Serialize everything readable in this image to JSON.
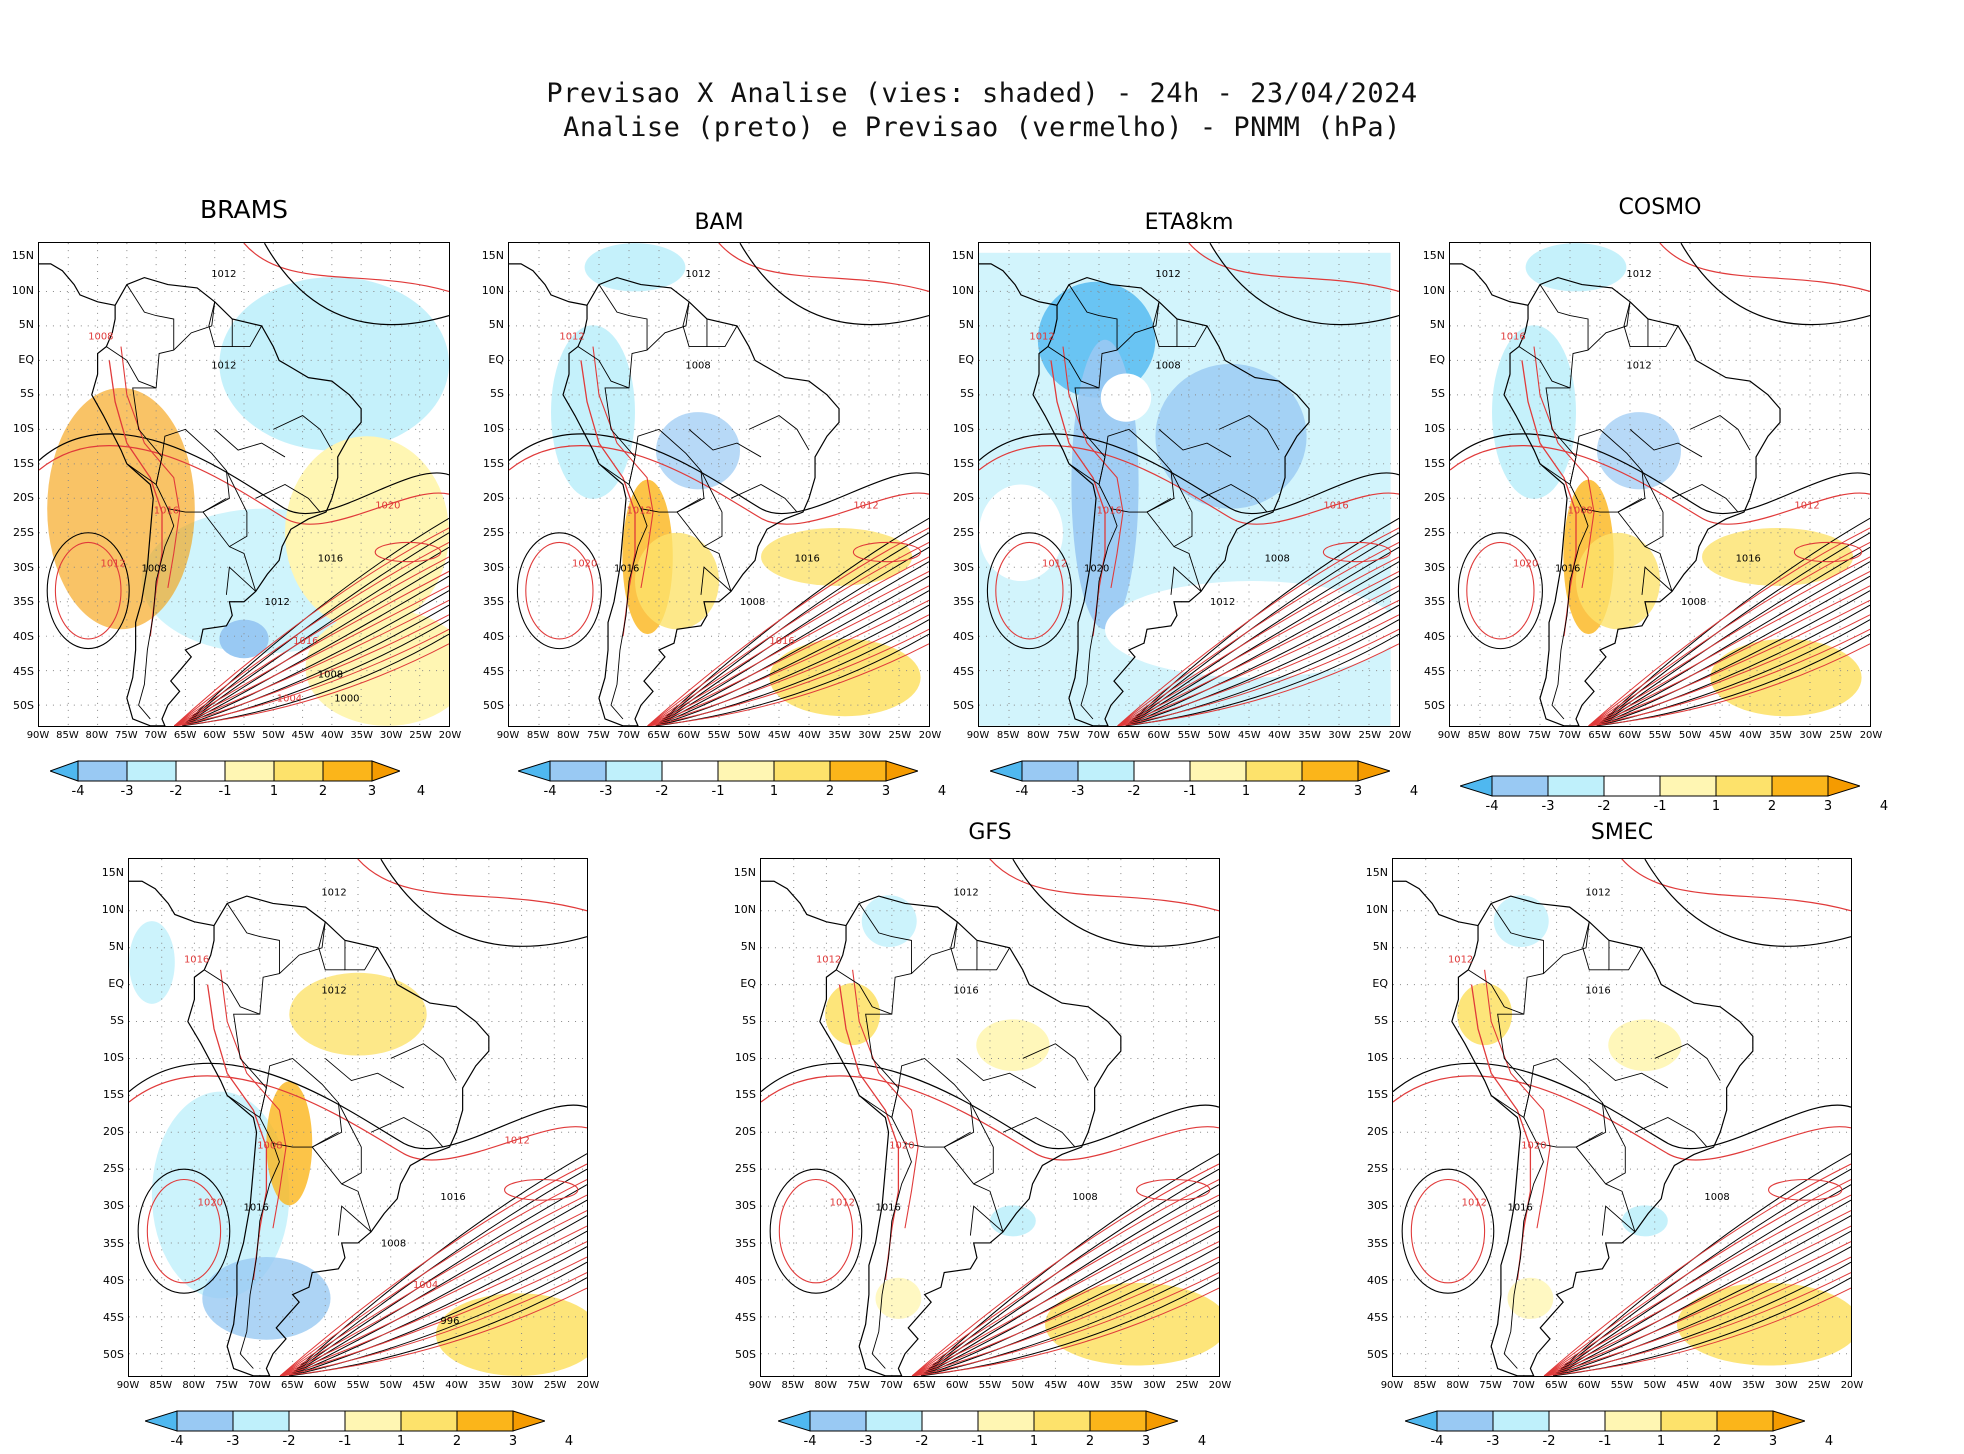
{
  "title": {
    "line1": "Previsao X Analise (vies: shaded) - 24h - 23/04/2024",
    "line2": "Analise (preto) e Previsao (vermelho) - PNMM (hPa)"
  },
  "lat_labels": [
    "15N",
    "10N",
    "5N",
    "EQ",
    "5S",
    "10S",
    "15S",
    "20S",
    "25S",
    "30S",
    "35S",
    "40S",
    "45S",
    "50S"
  ],
  "lon_labels": [
    "90W",
    "85W",
    "80W",
    "75W",
    "70W",
    "65W",
    "60W",
    "55W",
    "50W",
    "45W",
    "40W",
    "35W",
    "30W",
    "25W",
    "20W"
  ],
  "colorbar": {
    "labels": [
      "-4",
      "-3",
      "-2",
      "-1",
      "1",
      "2",
      "3",
      "4"
    ],
    "colors": [
      "#4fb8f0",
      "#99c9f3",
      "#bff0fb",
      "#ffffff",
      "#fff6b3",
      "#fde26b",
      "#fbb51a",
      "#f59b00"
    ]
  },
  "colors": {
    "analysis": "#000000",
    "forecast": "#e03a3a",
    "coast": "#000000"
  },
  "panels": [
    {
      "name": "BRAMS",
      "bias": "warm-strong",
      "contour_labels": [
        "1012",
        "1008",
        "1012",
        "1016",
        "1008",
        "1012",
        "1016",
        "1020",
        "1012",
        "1016",
        "1008",
        "1004",
        "1000"
      ]
    },
    {
      "name": "BAM",
      "bias": "mixed",
      "contour_labels": [
        "1012",
        "1012",
        "1008",
        "1012",
        "1016",
        "1020",
        "1016",
        "1012",
        "1008",
        "1016"
      ]
    },
    {
      "name": "ETA8km",
      "bias": "cool",
      "contour_labels": [
        "1012",
        "1012",
        "1008",
        "1016",
        "1020",
        "1012",
        "1008",
        "1016",
        "1012"
      ]
    },
    {
      "name": "COSMO",
      "bias": "mixed",
      "contour_labels": [
        "1012",
        "1016",
        "1012",
        "1008",
        "1016",
        "1020",
        "1016",
        "1012",
        "1008"
      ]
    },
    {
      "name": "",
      "bias": "mixed-cool",
      "contour_labels": [
        "1012",
        "1016",
        "1012",
        "1008",
        "1016",
        "1020",
        "1016",
        "1012",
        "1008",
        "1004",
        "996"
      ]
    },
    {
      "name": "GFS",
      "bias": "slight",
      "contour_labels": [
        "1012",
        "1012",
        "1016",
        "1020",
        "1016",
        "1012",
        "1008"
      ]
    },
    {
      "name": "SMEC",
      "bias": "slight",
      "contour_labels": [
        "1012",
        "1012",
        "1016",
        "1020",
        "1016",
        "1012",
        "1008"
      ]
    }
  ]
}
